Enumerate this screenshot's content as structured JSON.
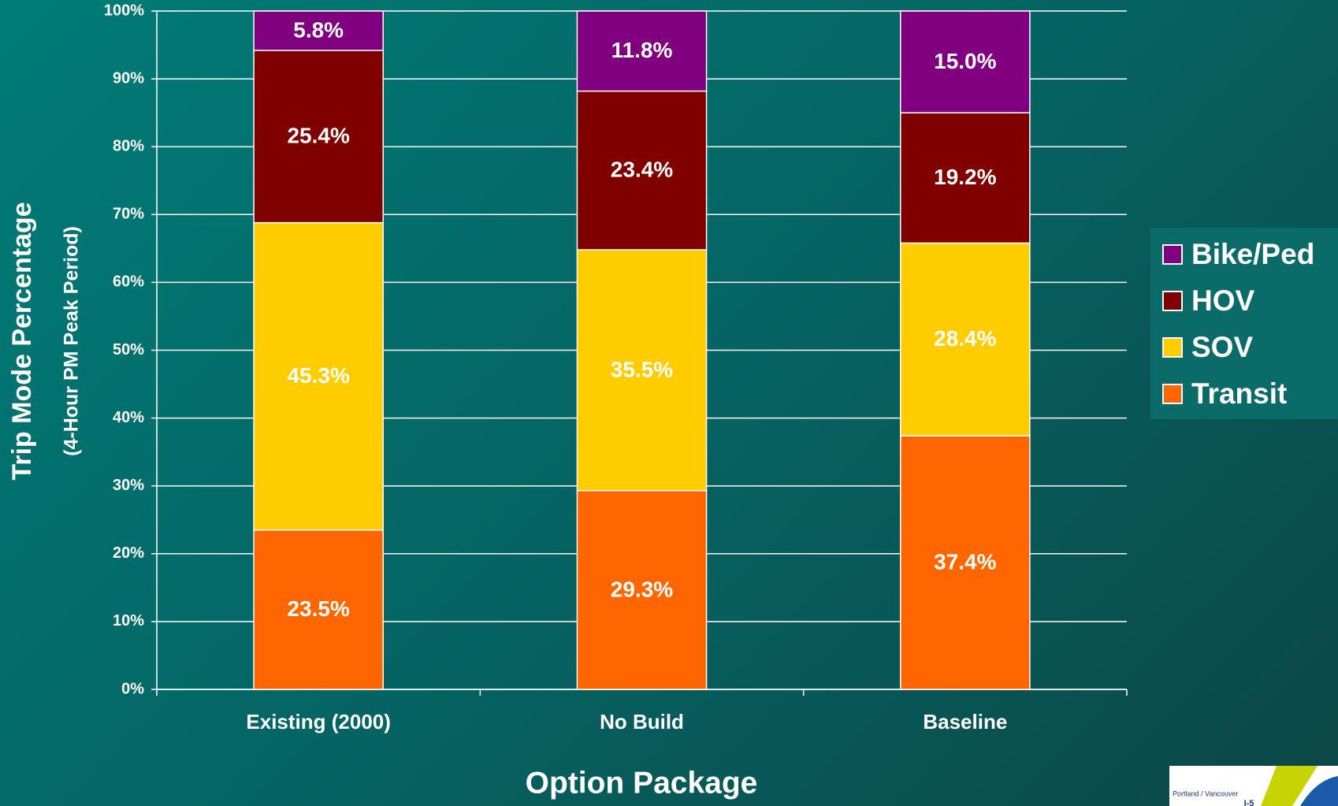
{
  "chart_data": {
    "type": "stacked_bar",
    "y_axis_label": "Trip Mode Percentage",
    "y_axis_sublabel": "(4-Hour PM Peak Period)",
    "x_axis_label": "Option Package",
    "categories": [
      "Existing (2000)",
      "No Build",
      "Baseline"
    ],
    "series": [
      {
        "name": "Transit",
        "color": "#ff6600",
        "values": [
          23.5,
          29.3,
          37.4
        ],
        "value_labels": [
          "23.5%",
          "29.3%",
          "37.4%"
        ]
      },
      {
        "name": "SOV",
        "color": "#ffcc00",
        "values": [
          45.3,
          35.5,
          28.4
        ],
        "value_labels": [
          "45.3%",
          "35.5%",
          "28.4%"
        ]
      },
      {
        "name": "HOV",
        "color": "#800000",
        "values": [
          25.4,
          23.4,
          19.2
        ],
        "value_labels": [
          "25.4%",
          "23.4%",
          "19.2%"
        ]
      },
      {
        "name": "Bike/Ped",
        "color": "#800080",
        "values": [
          5.8,
          11.8,
          15.0
        ],
        "value_labels": [
          "5.8%",
          "11.8%",
          "15.0%"
        ]
      }
    ],
    "ylim": [
      0,
      100
    ],
    "yticks": [
      {
        "value": 0,
        "label": "0%"
      },
      {
        "value": 10,
        "label": "10%"
      },
      {
        "value": 20,
        "label": "20%"
      },
      {
        "value": 30,
        "label": "30%"
      },
      {
        "value": 40,
        "label": "40%"
      },
      {
        "value": 50,
        "label": "50%"
      },
      {
        "value": 60,
        "label": "60%"
      },
      {
        "value": 70,
        "label": "70%"
      },
      {
        "value": 80,
        "label": "80%"
      },
      {
        "value": 90,
        "label": "90%"
      },
      {
        "value": 100,
        "label": "100%"
      }
    ],
    "grid": true,
    "legend": "right"
  },
  "logo_text": [
    "Portland / Vancouver",
    "I-5"
  ]
}
